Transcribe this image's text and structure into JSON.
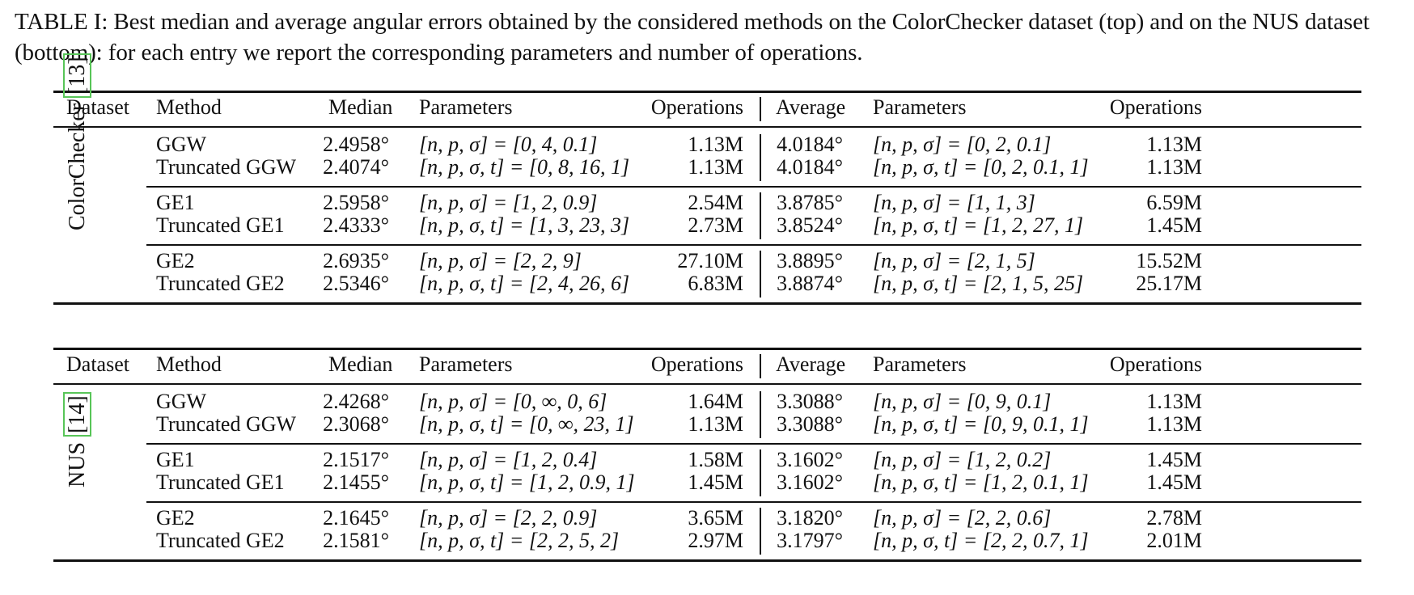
{
  "caption": "TABLE I: Best median and average angular errors obtained by the considered methods on the ColorChecker dataset (top) and on the NUS dataset (bottom): for each entry we report the corresponding parameters and number of operations.",
  "headers": [
    "Dataset",
    "Method",
    "Median",
    "Parameters",
    "Operations",
    "Average",
    "Parameters",
    "Operations"
  ],
  "tables": [
    {
      "dataset": "ColorChecker",
      "cite": "13",
      "groups": [
        [
          {
            "method": "GGW",
            "median": "2.4958°",
            "params": "[n, p, σ] = [0, 4, 0.1]",
            "ops": "1.13M",
            "average": "4.0184°",
            "params2": "[n, p, σ] = [0, 2, 0.1]",
            "ops2": "1.13M"
          },
          {
            "method": "Truncated GGW",
            "median": "2.4074°",
            "params": "[n, p, σ, t] = [0, 8, 16, 1]",
            "ops": "1.13M",
            "average": "4.0184°",
            "params2": "[n, p, σ, t] = [0, 2, 0.1, 1]",
            "ops2": "1.13M"
          }
        ],
        [
          {
            "method": "GE1",
            "median": "2.5958°",
            "params": "[n, p, σ] = [1, 2, 0.9]",
            "ops": "2.54M",
            "average": "3.8785°",
            "params2": "[n, p, σ] = [1, 1, 3]",
            "ops2": "6.59M"
          },
          {
            "method": "Truncated GE1",
            "median": "2.4333°",
            "params": "[n, p, σ, t] = [1, 3, 23, 3]",
            "ops": "2.73M",
            "average": "3.8524°",
            "params2": "[n, p, σ, t] = [1, 2, 27, 1]",
            "ops2": "1.45M"
          }
        ],
        [
          {
            "method": "GE2",
            "median": "2.6935°",
            "params": "[n, p, σ] = [2, 2, 9]",
            "ops": "27.10M",
            "average": "3.8895°",
            "params2": "[n, p, σ] = [2, 1, 5]",
            "ops2": "15.52M"
          },
          {
            "method": "Truncated GE2",
            "median": "2.5346°",
            "params": "[n, p, σ, t] = [2, 4, 26, 6]",
            "ops": "6.83M",
            "average": "3.8874°",
            "params2": "[n, p, σ, t] = [2, 1, 5, 25]",
            "ops2": "25.17M"
          }
        ]
      ]
    },
    {
      "dataset": "NUS",
      "cite": "14",
      "groups": [
        [
          {
            "method": "GGW",
            "median": "2.4268°",
            "params": "[n, p, σ] = [0, ∞, 0, 6]",
            "ops": "1.64M",
            "average": "3.3088°",
            "params2": "[n, p, σ] = [0, 9, 0.1]",
            "ops2": "1.13M"
          },
          {
            "method": "Truncated GGW",
            "median": "2.3068°",
            "params": "[n, p, σ, t] = [0, ∞, 23, 1]",
            "ops": "1.13M",
            "average": "3.3088°",
            "params2": "[n, p, σ, t] = [0, 9, 0.1, 1]",
            "ops2": "1.13M"
          }
        ],
        [
          {
            "method": "GE1",
            "median": "2.1517°",
            "params": "[n, p, σ] = [1, 2, 0.4]",
            "ops": "1.58M",
            "average": "3.1602°",
            "params2": "[n, p, σ] = [1, 2, 0.2]",
            "ops2": "1.45M"
          },
          {
            "method": "Truncated GE1",
            "median": "2.1455°",
            "params": "[n, p, σ, t] = [1, 2, 0.9, 1]",
            "ops": "1.45M",
            "average": "3.1602°",
            "params2": "[n, p, σ, t] = [1, 2, 0.1, 1]",
            "ops2": "1.45M"
          }
        ],
        [
          {
            "method": "GE2",
            "median": "2.1645°",
            "params": "[n, p, σ] = [2, 2, 0.9]",
            "ops": "3.65M",
            "average": "3.1820°",
            "params2": "[n, p, σ] = [2, 2, 0.6]",
            "ops2": "2.78M"
          },
          {
            "method": "Truncated GE2",
            "median": "2.1581°",
            "params": "[n, p, σ, t] = [2, 2, 5, 2]",
            "ops": "2.97M",
            "average": "3.1797°",
            "params2": "[n, p, σ, t] = [2, 2, 0.7, 1]",
            "ops2": "2.01M"
          }
        ]
      ]
    }
  ]
}
